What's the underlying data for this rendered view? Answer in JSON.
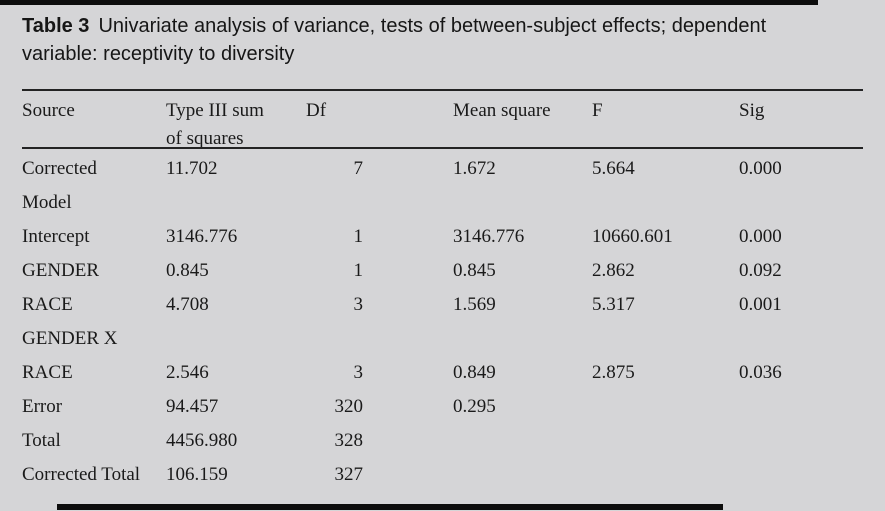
{
  "title": {
    "label": "Table 3",
    "text": "Univariate analysis of variance, tests of between-subject effects; dependent variable: receptivity to diversity"
  },
  "colors": {
    "background": "#d5d5d7",
    "text": "#1a1a1a",
    "rule": "#232323",
    "artifact_bar": "#0d0d0d"
  },
  "table": {
    "columns": [
      {
        "label": "Source"
      },
      {
        "label": "Type III sum\nof squares"
      },
      {
        "label": "Df"
      },
      {
        "label": "Mean square"
      },
      {
        "label": "F"
      },
      {
        "label": "Sig"
      }
    ],
    "rows": [
      [
        "Corrected\nModel",
        "11.702",
        "7",
        "1.672",
        "5.664",
        "0.000"
      ],
      [
        "Intercept",
        "3146.776",
        "1",
        "3146.776",
        "10660.601",
        "0.000"
      ],
      [
        "GENDER",
        "0.845",
        "1",
        "0.845",
        "2.862",
        "0.092"
      ],
      [
        "RACE",
        "4.708",
        "3",
        "1.569",
        "5.317",
        "0.001"
      ],
      [
        "GENDER X",
        "",
        "",
        "",
        "",
        ""
      ],
      [
        "RACE",
        "2.546",
        "3",
        "0.849",
        "2.875",
        "0.036"
      ],
      [
        "Error",
        "94.457",
        "320",
        "0.295",
        "",
        ""
      ],
      [
        "Total",
        "4456.980",
        "328",
        "",
        "",
        ""
      ],
      [
        "Corrected Total",
        "106.159",
        "327",
        "",
        "",
        ""
      ]
    ]
  }
}
